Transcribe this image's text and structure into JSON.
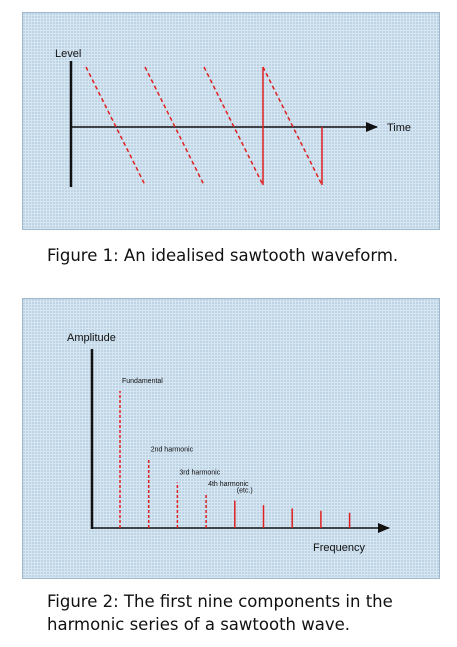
{
  "figure1": {
    "y_label": "Level",
    "x_label": "Time",
    "caption": "Figure 1: An idealised sawtooth waveform.",
    "wave_color": "#e02020",
    "axis_color": "#111111"
  },
  "figure2": {
    "y_label": "Amplitude",
    "x_label": "Frequency",
    "caption_line1": "Figure 2: The first nine components in the",
    "caption_line2": "harmonic series of a sawtooth wave.",
    "bar_color": "#e02020",
    "harmonic_labels": [
      {
        "text": "Fundamental",
        "harmonic": 1
      },
      {
        "text": "2nd harmonic",
        "harmonic": 2
      },
      {
        "text": "3rd harmonic",
        "harmonic": 3
      },
      {
        "text": "4th harmonic",
        "harmonic": 4
      },
      {
        "text": "(etc.)",
        "harmonic": 5
      }
    ],
    "chart_data": {
      "type": "bar",
      "categories": [
        1,
        2,
        3,
        4,
        5,
        6,
        7,
        8,
        9
      ],
      "values": [
        1.0,
        0.5,
        0.333,
        0.25,
        0.2,
        0.167,
        0.143,
        0.125,
        0.111
      ]
    }
  }
}
